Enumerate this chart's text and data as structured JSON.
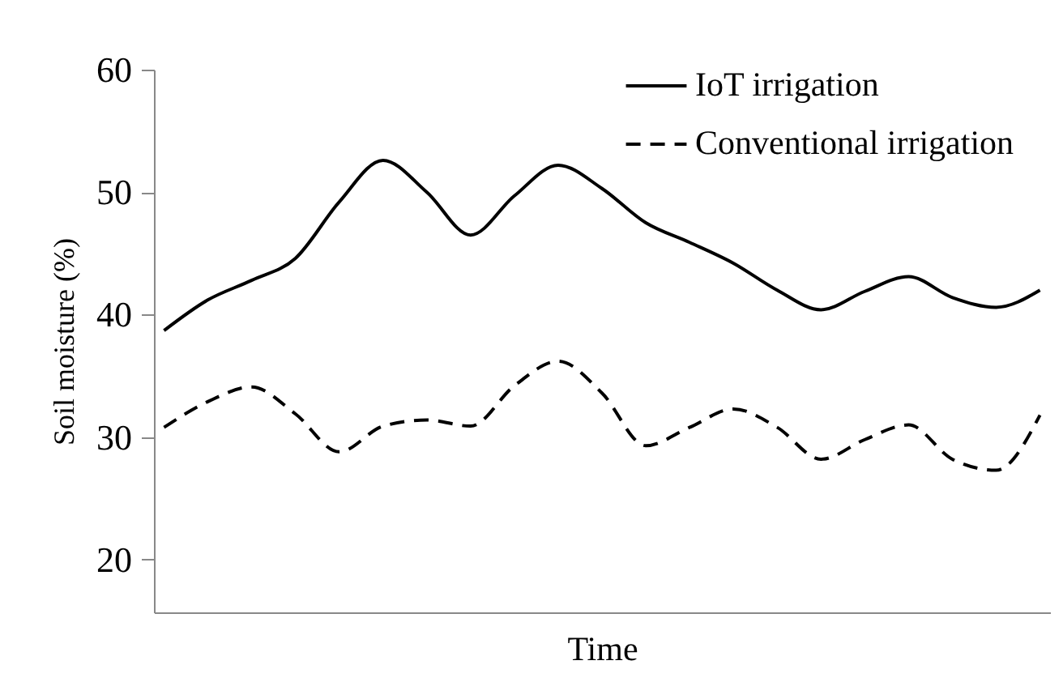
{
  "chart_data": {
    "type": "line",
    "xlabel": "Time",
    "ylabel": "Soil moisture (%)",
    "categories": [
      null,
      null,
      null,
      null,
      null,
      null,
      null,
      null,
      null,
      null,
      null,
      null,
      null,
      null,
      null,
      null,
      null,
      null,
      null,
      null,
      null
    ],
    "series": [
      {
        "name": "IoT irrigation",
        "color": "#000000",
        "line_style": "solid",
        "values": [
          38.7,
          41.2,
          42.8,
          44.6,
          49.2,
          52.6,
          50.0,
          46.5,
          49.7,
          52.2,
          50.3,
          47.5,
          45.9,
          44.2,
          42.0,
          40.4,
          41.9,
          43.1,
          41.4,
          40.6,
          42.0
        ]
      },
      {
        "name": "Conventional irrigation",
        "color": "#000000",
        "line_style": "dashed",
        "values": [
          30.8,
          32.9,
          34.1,
          31.9,
          28.8,
          30.9,
          31.4,
          30.9,
          34.2,
          36.2,
          33.6,
          29.3,
          30.8,
          32.3,
          30.8,
          28.2,
          29.8,
          31.0,
          28.2,
          27.3,
          31.8
        ]
      }
    ],
    "ylim": [
      15.7,
      60
    ],
    "yticks": [
      20,
      30,
      40,
      50,
      60
    ],
    "grid": false,
    "legend": "top right",
    "marker": "none"
  }
}
